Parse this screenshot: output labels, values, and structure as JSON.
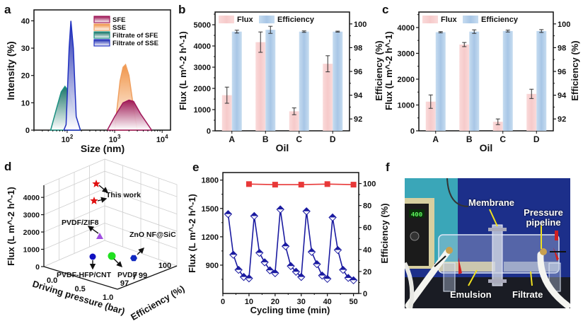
{
  "figure": {
    "panel_labels": [
      "a",
      "b",
      "c",
      "d",
      "e",
      "f"
    ]
  },
  "chart_data": [
    {
      "id": "a",
      "type": "area",
      "xlabel": "Size (nm)",
      "ylabel": "Intensity (%)",
      "xscale": "log",
      "xlim": [
        20,
        15000
      ],
      "ylim": [
        0,
        44
      ],
      "xticks": [
        "10^2",
        "10^3",
        "10^4"
      ],
      "xtick_values": [
        100,
        1000,
        10000
      ],
      "yticks": [
        0,
        10,
        20,
        30,
        40
      ],
      "legend_position": "top-right",
      "series": [
        {
          "name": "SFE",
          "color": "#a0185a",
          "fill_top": "#9a1050",
          "x": [
            700,
            1000,
            1500,
            2000,
            2500,
            3500,
            6000
          ],
          "y": [
            0,
            5,
            10,
            11,
            10.5,
            6,
            0
          ]
        },
        {
          "name": "SSE",
          "color": "#f0a060",
          "fill_top": "#f09040",
          "x": [
            1000,
            1300,
            1500,
            1700,
            2000,
            2500,
            3000
          ],
          "y": [
            0,
            18,
            23,
            24,
            20,
            8,
            0
          ]
        },
        {
          "name": "Filtrate of SFE",
          "color": "#1a9080",
          "fill_top": "#0e6e60",
          "x": [
            45,
            60,
            75,
            90,
            110,
            140,
            190
          ],
          "y": [
            0,
            8,
            14,
            16,
            14,
            7,
            0
          ]
        },
        {
          "name": "Filtrate of SSE",
          "color": "#2030c0",
          "fill_top": "#1a28b0",
          "x": [
            85,
            95,
            110,
            120,
            135,
            155,
            190
          ],
          "y": [
            0,
            2,
            30,
            40,
            30,
            5,
            0
          ]
        }
      ]
    },
    {
      "id": "b",
      "type": "bar",
      "xlabel": "Oil",
      "ylabel": "Flux (L m^-2 h^-1)",
      "ylabel_right": "Efficiency (%)",
      "categories": [
        "A",
        "B",
        "C",
        "D"
      ],
      "ylim": [
        0,
        5600
      ],
      "yticks": [
        0,
        1000,
        2000,
        3000,
        4000,
        5000
      ],
      "ylim_right": [
        91,
        101
      ],
      "yticks_right": [
        92,
        94,
        96,
        98,
        100
      ],
      "legend_position": "top",
      "series": [
        {
          "name": "Flux",
          "axis": "left",
          "color": "#f5cccc",
          "values": [
            1680,
            4180,
            920,
            3160
          ],
          "errors": [
            380,
            480,
            160,
            380
          ]
        },
        {
          "name": "Efficiency",
          "axis": "right",
          "color": "#aecbe8",
          "values": [
            99.35,
            99.5,
            99.35,
            99.35
          ],
          "errors": [
            0.12,
            0.3,
            0.06,
            0.04
          ]
        }
      ]
    },
    {
      "id": "c",
      "type": "bar",
      "xlabel": "Oil",
      "ylabel": "Flux (L m^-2 h^-1)",
      "ylabel_right": "Efficiency (%)",
      "categories": [
        "A",
        "B",
        "C",
        "D"
      ],
      "ylim": [
        0,
        4600
      ],
      "yticks": [
        0,
        1000,
        2000,
        3000,
        4000
      ],
      "ylim_right": [
        91,
        101
      ],
      "yticks_right": [
        92,
        94,
        96,
        98,
        100
      ],
      "legend_position": "top",
      "series": [
        {
          "name": "Flux",
          "axis": "left",
          "color": "#f5cccc",
          "values": [
            1130,
            3340,
            350,
            1430
          ],
          "errors": [
            260,
            80,
            110,
            180
          ]
        },
        {
          "name": "Efficiency",
          "axis": "right",
          "color": "#aecbe8",
          "values": [
            99.3,
            99.35,
            99.4,
            99.4
          ],
          "errors": [
            0.05,
            0.15,
            0.08,
            0.12
          ]
        }
      ]
    },
    {
      "id": "d",
      "type": "scatter",
      "subtype": "3d",
      "xlabel": "Driving pressure (bar)",
      "ylabel": "Efficiency (%)",
      "zlabel": "Flux (L m^-2 h^-1)",
      "xticks": [
        "0.0",
        "0.5",
        "1.0"
      ],
      "yticks": [
        "97",
        "99",
        "100"
      ],
      "zticks": [
        0,
        1000,
        2000,
        3000,
        4000
      ],
      "points": [
        {
          "label": "This work",
          "pressure": 0.1,
          "efficiency": 99.5,
          "flux": 4180,
          "color": "#e01010",
          "marker": "star"
        },
        {
          "label": "This work",
          "pressure": 0.1,
          "efficiency": 99.4,
          "flux": 3340,
          "color": "#e01010",
          "marker": "star"
        },
        {
          "label": "PVDF/ZIF8",
          "pressure": 0.5,
          "efficiency": 97.5,
          "flux": 1800,
          "color": "#a050e0",
          "marker": "triangle"
        },
        {
          "label": "PVDF-HFP/CNT",
          "pressure": 0.6,
          "efficiency": 98.5,
          "flux": 900,
          "color": "#1010c0",
          "marker": "circle"
        },
        {
          "label": "PVDF",
          "pressure": 0.6,
          "efficiency": 99.3,
          "flux": 900,
          "color": "#20e020",
          "marker": "circle"
        },
        {
          "label": "ZnO NF@SiC",
          "pressure": 0.3,
          "efficiency": 99.9,
          "flux": 900,
          "color": "#1028c0",
          "marker": "hexagon"
        }
      ],
      "annotations": [
        "This work",
        "PVDF/ZIF8",
        "ZnO NF@SiC",
        "PVDF-HFP/CNT",
        "PVDF"
      ]
    },
    {
      "id": "e",
      "type": "line",
      "xlabel": "Cycling time (min)",
      "ylabel": "Flux (L m^-2 h^-1)",
      "ylabel_right": "Efficiency (%)",
      "xlim": [
        0,
        52
      ],
      "xticks": [
        0,
        10,
        20,
        30,
        40,
        50
      ],
      "ylim": [
        600,
        1880
      ],
      "yticks": [
        900,
        1200,
        1500,
        1800
      ],
      "ylim_right": [
        0,
        110
      ],
      "yticks_right": [
        0,
        20,
        40,
        60,
        80,
        100
      ],
      "series": [
        {
          "name": "Flux",
          "axis": "left",
          "color": "#1a1aa0",
          "marker": "half-filled-diamond",
          "x": [
            2,
            4,
            6,
            8,
            10,
            12,
            14,
            16,
            18,
            20,
            22,
            24,
            26,
            28,
            30,
            32,
            34,
            36,
            38,
            40,
            42,
            44,
            46,
            48,
            50
          ],
          "y": [
            1440,
            1010,
            850,
            775,
            760,
            1420,
            1030,
            930,
            845,
            815,
            1490,
            1100,
            890,
            830,
            775,
            1470,
            1040,
            910,
            790,
            755,
            1405,
            1060,
            850,
            765,
            740
          ]
        },
        {
          "name": "Efficiency",
          "axis": "right",
          "color": "#e83838",
          "marker": "square",
          "x": [
            10,
            20,
            30,
            40,
            50
          ],
          "y": [
            99.5,
            99,
            99,
            99.5,
            99
          ]
        }
      ]
    }
  ],
  "photo_f": {
    "labels": {
      "membrane": "Membrane",
      "pressure_pipeline": "Pressure pipeline",
      "emulsion": "Emulsion",
      "filtrate": "Filtrate",
      "display_value": "400"
    }
  }
}
